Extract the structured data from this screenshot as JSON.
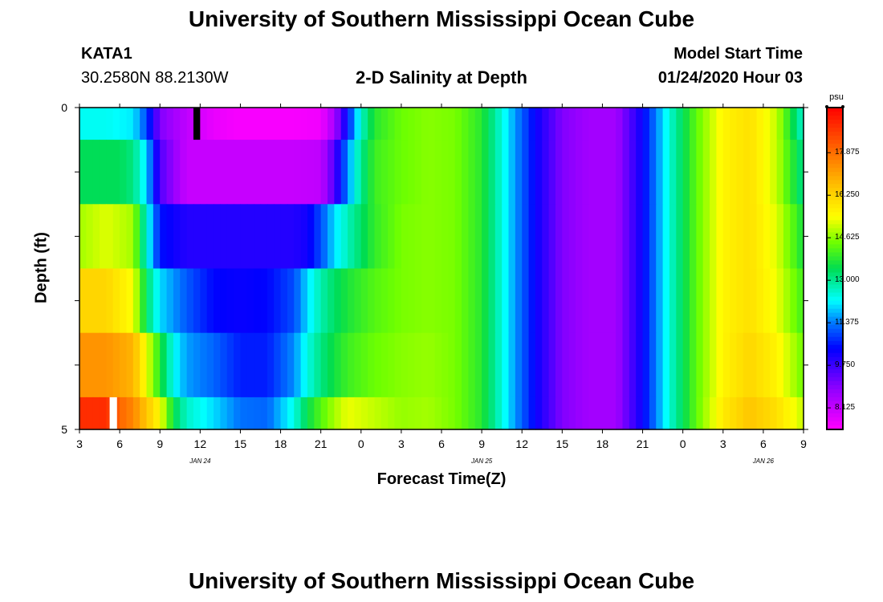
{
  "page": {
    "title_top": "University of Southern Mississippi Ocean Cube",
    "title_bottom": "University of Southern Mississippi Ocean Cube",
    "station": "KATA1",
    "coords": "30.2580N 88.2130W",
    "subtitle": "2-D Salinity at Depth",
    "model_start_label": "Model Start Time",
    "model_start_value": "01/24/2020 Hour 03"
  },
  "chart_data": {
    "type": "heatmap",
    "title": "2-D Salinity at Depth",
    "xlabel": "Forecast Time(Z)",
    "ylabel": "Depth (ft)",
    "y_tick_labels": [
      "0",
      "5"
    ],
    "ylim": [
      0,
      5
    ],
    "x_tick_labels": [
      "3",
      "6",
      "9",
      "12",
      "15",
      "18",
      "21",
      "0",
      "3",
      "6",
      "9",
      "12",
      "15",
      "18",
      "21",
      "0",
      "3",
      "6",
      "9"
    ],
    "date_labels": [
      "JAN 24",
      "JAN 25",
      "JAN 26"
    ],
    "xlim_hours": [
      0,
      54
    ],
    "legend": {
      "unit": "psu",
      "tick_labels": [
        "17.875",
        "16.250",
        "14.625",
        "13.000",
        "11.375",
        "9.750",
        "8.125"
      ],
      "tick_values": [
        17.875,
        16.25,
        14.625,
        13.0,
        11.375,
        9.75,
        8.125
      ],
      "range": [
        7.3,
        19.6
      ],
      "placement": "right"
    },
    "missing_cells": [
      {
        "row": 0,
        "hours": [
          8.5,
          9.0
        ]
      },
      {
        "row": 5,
        "hours": [
          2.25,
          2.8
        ]
      }
    ],
    "rows": [
      {
        "depth_range": [
          0.0,
          0.5
        ],
        "hours": [
          0,
          2,
          4,
          5,
          6,
          8,
          10,
          12,
          14,
          16,
          18,
          19,
          20,
          21,
          22,
          24,
          26,
          28,
          30,
          32,
          34,
          36,
          38,
          40,
          42,
          44,
          46,
          48,
          50,
          52,
          54
        ],
        "psu": [
          12.3,
          12.3,
          12.1,
          11.0,
          9.0,
          8.2,
          7.6,
          7.4,
          7.4,
          7.4,
          7.5,
          8.5,
          10.5,
          12.6,
          13.8,
          14.4,
          14.6,
          14.5,
          13.8,
          12.0,
          10.3,
          9.0,
          8.6,
          8.6,
          10.3,
          12.5,
          14.3,
          15.6,
          16.0,
          15.0,
          12.5
        ]
      },
      {
        "depth_range": [
          0.5,
          1.5
        ],
        "hours": [
          0,
          3,
          4,
          5,
          6,
          8,
          10,
          12,
          14,
          16,
          18,
          19,
          20,
          21,
          22,
          24,
          26,
          28,
          30,
          32,
          34,
          36,
          38,
          40,
          42,
          44,
          46,
          48,
          50,
          52,
          54
        ],
        "psu": [
          13.4,
          13.4,
          13.1,
          12.0,
          9.5,
          8.1,
          8.1,
          8.1,
          8.1,
          8.1,
          8.2,
          9.5,
          11.5,
          13.0,
          14.0,
          14.4,
          14.6,
          14.5,
          13.8,
          12.0,
          10.3,
          9.0,
          8.6,
          8.6,
          10.3,
          12.5,
          14.3,
          15.6,
          16.0,
          15.0,
          13.0
        ]
      },
      {
        "depth_range": [
          1.5,
          2.5
        ],
        "hours": [
          0,
          2,
          4,
          5,
          6,
          8,
          10,
          12,
          14,
          16,
          17,
          18,
          19,
          20,
          21,
          22,
          24,
          26,
          28,
          30,
          32,
          34,
          36,
          38,
          40,
          42,
          44,
          46,
          48,
          50,
          52,
          54
        ],
        "psu": [
          14.8,
          15.2,
          14.8,
          12.5,
          10.5,
          10.0,
          10.0,
          10.0,
          10.0,
          10.0,
          10.2,
          11.0,
          12.0,
          12.7,
          13.3,
          13.9,
          14.5,
          14.6,
          14.5,
          13.8,
          12.0,
          10.3,
          9.0,
          8.6,
          8.6,
          10.3,
          12.5,
          14.3,
          15.6,
          16.0,
          15.2,
          13.6
        ]
      },
      {
        "depth_range": [
          2.5,
          3.5
        ],
        "hours": [
          0,
          2,
          4,
          5,
          6,
          8,
          10,
          12,
          14,
          16,
          17,
          18,
          19,
          20,
          22,
          24,
          26,
          28,
          30,
          32,
          34,
          36,
          38,
          40,
          42,
          44,
          46,
          48,
          50,
          52,
          54
        ],
        "psu": [
          16.2,
          16.2,
          15.4,
          13.3,
          12.0,
          11.1,
          10.4,
          10.3,
          10.4,
          11.0,
          12.0,
          12.8,
          13.3,
          13.7,
          14.2,
          14.5,
          14.6,
          14.5,
          13.8,
          12.0,
          10.3,
          9.0,
          8.6,
          8.6,
          10.3,
          12.5,
          14.3,
          15.6,
          16.0,
          15.3,
          14.0
        ]
      },
      {
        "depth_range": [
          3.5,
          4.5
        ],
        "hours": [
          0,
          2,
          4,
          6,
          7,
          8,
          10,
          12,
          14,
          16,
          17,
          18,
          19,
          20,
          22,
          24,
          26,
          28,
          30,
          32,
          34,
          36,
          38,
          40,
          42,
          44,
          46,
          48,
          50,
          52,
          54
        ],
        "psu": [
          17.3,
          17.3,
          16.8,
          13.8,
          12.3,
          11.6,
          11.2,
          10.6,
          10.6,
          11.5,
          12.4,
          13.1,
          13.6,
          14.0,
          14.4,
          14.6,
          14.7,
          14.5,
          13.8,
          12.0,
          10.3,
          9.0,
          8.6,
          8.6,
          10.3,
          12.5,
          14.3,
          15.6,
          16.2,
          15.6,
          14.4
        ]
      },
      {
        "depth_range": [
          4.5,
          5.0
        ],
        "hours": [
          0,
          2,
          3,
          4,
          6,
          7,
          8,
          10,
          12,
          14,
          15,
          16,
          17,
          18,
          19,
          20,
          22,
          24,
          26,
          28,
          30,
          32,
          34,
          36,
          38,
          40,
          42,
          44,
          46,
          48,
          50,
          52,
          54
        ],
        "psu": [
          18.9,
          18.9,
          18.0,
          17.5,
          15.5,
          13.5,
          12.6,
          12.0,
          11.3,
          11.2,
          11.8,
          12.4,
          13.5,
          14.2,
          14.8,
          15.3,
          15.0,
          14.7,
          14.8,
          14.5,
          13.8,
          12.0,
          10.3,
          9.0,
          8.6,
          8.6,
          10.3,
          12.5,
          14.3,
          15.8,
          16.5,
          16.0,
          15.0
        ]
      }
    ]
  }
}
